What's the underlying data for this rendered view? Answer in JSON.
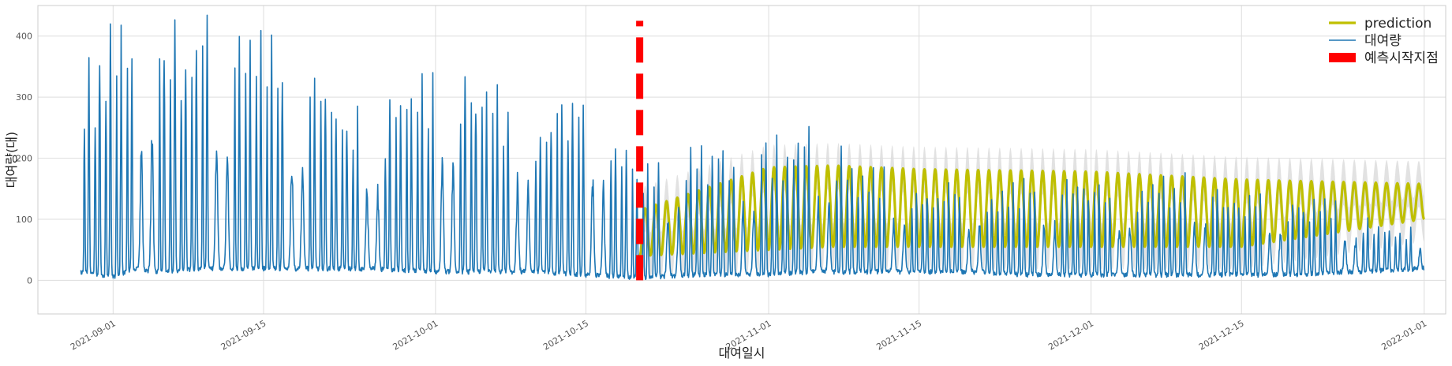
{
  "chart_data": {
    "type": "line",
    "xlabel": "대여일시",
    "ylabel": "대여량(대)",
    "x_range": [
      "2021-08-25",
      "2022-01-03"
    ],
    "ylim": [
      -55,
      450
    ],
    "y_ticks": [
      0,
      100,
      200,
      300,
      400
    ],
    "x_ticks": [
      "2021-09-01",
      "2021-09-15",
      "2021-10-01",
      "2021-10-15",
      "2021-11-01",
      "2021-11-15",
      "2021-12-01",
      "2021-12-15",
      "2022-01-01"
    ],
    "grid": true,
    "legend_position": "top-right",
    "forecast_start": "2021-10-20",
    "series": [
      {
        "name": "prediction",
        "color": "#bfbf00",
        "daily_profile": "sinusoidal",
        "x": [
          "2021-10-20",
          "2021-11-01",
          "2021-11-07",
          "2021-11-15",
          "2021-12-01",
          "2021-12-15",
          "2022-01-01"
        ],
        "y_daily_max": [
          115,
          185,
          188,
          182,
          178,
          165,
          158
        ],
        "y_daily_min": [
          40,
          50,
          55,
          55,
          55,
          55,
          100
        ],
        "interval_color": "#dddddd",
        "interval_width": 75
      },
      {
        "name": "대여량",
        "color": "#1f77b4",
        "daily_profile": "hourly",
        "x": [
          "2021-08-29",
          "2021-09-01",
          "2021-09-03",
          "2021-09-05",
          "2021-09-10",
          "2021-09-15",
          "2021-09-20",
          "2021-09-25",
          "2021-10-01",
          "2021-10-05",
          "2021-10-10",
          "2021-10-15",
          "2021-10-20",
          "2021-10-25",
          "2021-11-01",
          "2021-11-05",
          "2021-11-10",
          "2021-11-15",
          "2021-11-20",
          "2021-11-25",
          "2021-12-01",
          "2021-12-05",
          "2021-12-10",
          "2021-12-15",
          "2021-12-20",
          "2021-12-25",
          "2022-01-01"
        ],
        "y_daily_max": [
          310,
          400,
          370,
          425,
          410,
          375,
          310,
          250,
          345,
          320,
          260,
          320,
          175,
          210,
          215,
          240,
          180,
          150,
          150,
          150,
          155,
          150,
          165,
          140,
          130,
          110,
          70
        ],
        "y_daily_min": [
          10,
          2,
          15,
          10,
          15,
          15,
          15,
          15,
          10,
          10,
          10,
          5,
          0,
          5,
          5,
          10,
          10,
          10,
          10,
          5,
          5,
          5,
          5,
          5,
          5,
          10,
          15
        ]
      },
      {
        "name": "예측시작지점",
        "color": "#ff0000",
        "style": "dashed-vertical",
        "x": [
          "2021-10-20",
          "2021-10-20"
        ],
        "y": [
          0,
          425
        ]
      }
    ]
  }
}
